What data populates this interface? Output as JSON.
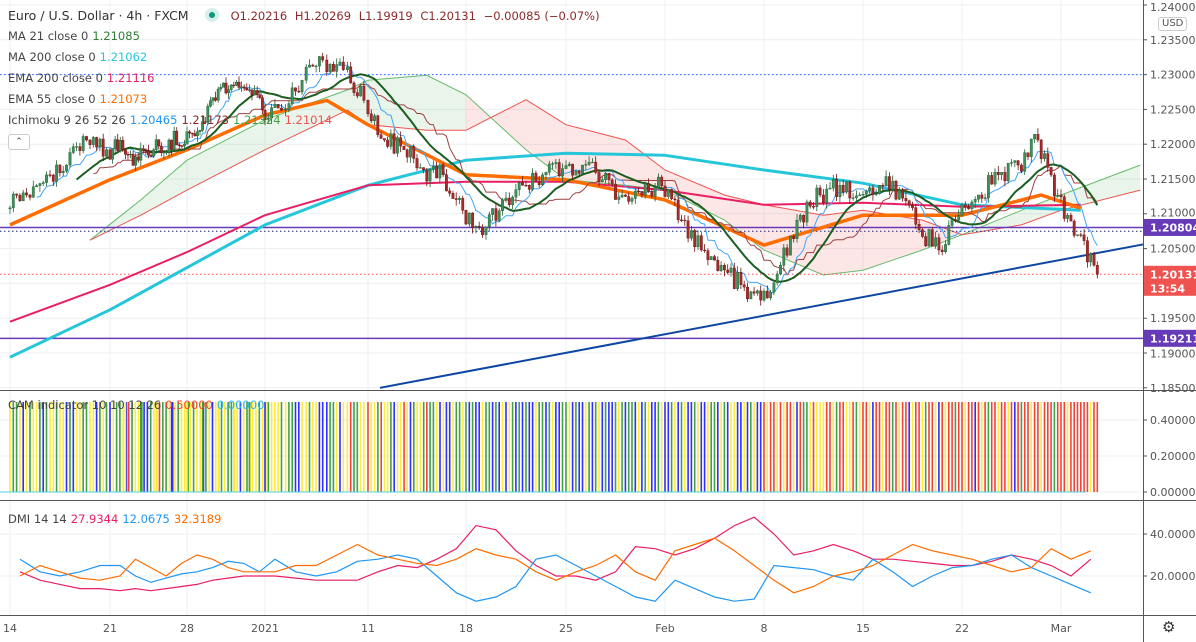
{
  "header": {
    "symbol": "Euro / U.S. Dollar · 4h · FXCM",
    "open": "O1.20216",
    "high": "H1.20269",
    "low": "L1.19919",
    "close": "C1.20131",
    "change": "−0.00085 (−0.07%)",
    "status_color": "#089981"
  },
  "legends": {
    "ma21": {
      "label": "MA 21 close 0",
      "value": "1.21085",
      "color": "#2e7d32"
    },
    "ma200": {
      "label": "MA 200 close 0",
      "value": "1.21062",
      "color": "#26c6da"
    },
    "ema200": {
      "label": "EMA 200 close 0",
      "value": "1.21116",
      "color": "#e91e63"
    },
    "ema55": {
      "label": "EMA 55 close 0",
      "value": "1.21073",
      "color": "#ff6d00"
    },
    "ichimoku": {
      "label": "Ichimoku 9 26 52 26",
      "v1": "1.20465",
      "v2": "1.21173",
      "v3": "1.21324",
      "v4": "1.21014"
    },
    "cam": {
      "label": "CAM indicator 10 10 12 26",
      "v1": "0.50000",
      "v2": "0.00000"
    },
    "dmi": {
      "label": "DMI 14 14",
      "v1": "27.9344",
      "v2": "12.0675",
      "v3": "32.3189"
    }
  },
  "price_axis": {
    "currency": "USD",
    "ticks": [
      "1.24000",
      "1.23500",
      "1.23000",
      "1.22500",
      "1.22000",
      "1.21500",
      "1.21000",
      "1.20500",
      "1.19500",
      "1.19000",
      "1.18500"
    ],
    "badges": [
      {
        "value": "1.20804",
        "color": "#673ab7"
      },
      {
        "value": "1.19211",
        "color": "#673ab7"
      },
      {
        "value": "1.20131",
        "countdown": "13:54",
        "color": "#ef5350"
      }
    ]
  },
  "cam_axis": {
    "ticks": [
      "0.40000",
      "0.20000",
      "0.00000"
    ]
  },
  "dmi_axis": {
    "ticks": [
      "40.0000",
      "20.0000"
    ]
  },
  "time_axis": {
    "labels": [
      "14",
      "21",
      "28",
      "2021",
      "11",
      "18",
      "25",
      "Feb",
      "8",
      "15",
      "22",
      "Mar"
    ]
  },
  "chart_data": {
    "type": "candlestick",
    "timeframe": "4h",
    "ylim": [
      1.185,
      1.24
    ],
    "days": [
      "2020-12-14",
      "2020-12-15",
      "2020-12-16",
      "2020-12-17",
      "2020-12-18",
      "2020-12-21",
      "2020-12-22",
      "2020-12-23",
      "2020-12-24",
      "2020-12-25",
      "2020-12-28",
      "2020-12-29",
      "2020-12-30",
      "2020-12-31",
      "2021-01-01",
      "2021-01-04",
      "2021-01-05",
      "2021-01-06",
      "2021-01-07",
      "2021-01-08",
      "2021-01-11",
      "2021-01-12",
      "2021-01-13",
      "2021-01-14",
      "2021-01-15",
      "2021-01-18",
      "2021-01-19",
      "2021-01-20",
      "2021-01-21",
      "2021-01-22",
      "2021-01-25",
      "2021-01-26",
      "2021-01-27",
      "2021-01-28",
      "2021-01-29",
      "2021-02-01",
      "2021-02-02",
      "2021-02-03",
      "2021-02-04",
      "2021-02-05",
      "2021-02-08",
      "2021-02-09",
      "2021-02-10",
      "2021-02-11",
      "2021-02-12",
      "2021-02-15",
      "2021-02-16",
      "2021-02-17",
      "2021-02-18",
      "2021-02-19",
      "2021-02-22",
      "2021-02-23",
      "2021-02-24",
      "2021-02-25",
      "2021-02-26",
      "2021-03-01",
      "2021-03-02"
    ],
    "daily_close": [
      1.2127,
      1.2156,
      1.217,
      1.2206,
      1.2192,
      1.2192,
      1.2177,
      1.2192,
      1.2206,
      1.22,
      1.222,
      1.2263,
      1.2285,
      1.2278,
      1.2249,
      1.2249,
      1.2292,
      1.2321,
      1.2307,
      1.2263,
      1.2206,
      1.2192,
      1.2163,
      1.2156,
      1.2105,
      1.207,
      1.212,
      1.2141,
      1.2156,
      1.2165,
      1.217,
      1.2149,
      1.2127,
      1.2127,
      1.214,
      1.2091,
      1.2048,
      1.2026,
      1.1998,
      1.1976,
      1.2026,
      1.2098,
      1.2127,
      1.2141,
      1.2127,
      1.2141,
      1.2134,
      1.2077,
      1.2048,
      1.2098,
      1.2127,
      1.2156,
      1.217,
      1.2206,
      1.2127,
      1.207,
      1.2013
    ],
    "ma200": [
      [
        "2020-12-14",
        1.1894
      ],
      [
        "2020-12-21",
        1.1962
      ],
      [
        "2021-01-04",
        1.2084
      ],
      [
        "2021-01-11",
        1.2141
      ],
      [
        "2021-01-18",
        1.2177
      ],
      [
        "2021-01-25",
        1.2187
      ],
      [
        "2021-02-01",
        1.2184
      ],
      [
        "2021-02-08",
        1.2163
      ],
      [
        "2021-02-15",
        1.2144
      ],
      [
        "2021-02-22",
        1.2113
      ],
      [
        "2021-03-02",
        1.2105
      ]
    ],
    "ema200": [
      [
        "2020-12-14",
        1.1945
      ],
      [
        "2020-12-21",
        1.1998
      ],
      [
        "2020-12-28",
        1.2045
      ],
      [
        "2021-01-04",
        1.2098
      ],
      [
        "2021-01-11",
        1.2141
      ],
      [
        "2021-01-18",
        1.2146
      ],
      [
        "2021-01-25",
        1.2146
      ],
      [
        "2021-02-01",
        1.2134
      ],
      [
        "2021-02-08",
        1.2113
      ],
      [
        "2021-02-15",
        1.2116
      ],
      [
        "2021-02-22",
        1.211
      ],
      [
        "2021-03-02",
        1.2113
      ]
    ],
    "ema55": [
      [
        "2020-12-14",
        1.2084
      ],
      [
        "2020-12-21",
        1.2149
      ],
      [
        "2020-12-28",
        1.2192
      ],
      [
        "2021-01-04",
        1.2242
      ],
      [
        "2021-01-07",
        1.2263
      ],
      [
        "2021-01-11",
        1.2228
      ],
      [
        "2021-01-18",
        1.2156
      ],
      [
        "2021-01-25",
        1.2149
      ],
      [
        "2021-02-01",
        1.212
      ],
      [
        "2021-02-08",
        1.2055
      ],
      [
        "2021-02-15",
        1.2098
      ],
      [
        "2021-02-22",
        1.2098
      ],
      [
        "2021-02-26",
        1.2127
      ],
      [
        "2021-03-02",
        1.2108
      ]
    ],
    "ichimoku_cloud": [
      [
        "2020-12-18",
        1.2062,
        1.2062
      ],
      [
        "2020-12-23",
        1.212,
        1.2098
      ],
      [
        "2020-12-28",
        1.2177,
        1.2134
      ],
      [
        "2021-01-04",
        1.2235,
        1.2192
      ],
      [
        "2021-01-08",
        1.2278,
        1.2249
      ],
      [
        "2021-01-11",
        1.2292,
        1.2228
      ],
      [
        "2021-01-14",
        1.2299,
        1.222
      ],
      [
        "2021-01-18",
        1.2271,
        1.222
      ],
      [
        "2021-01-21",
        1.2192,
        1.2264
      ],
      [
        "2021-01-25",
        1.2149,
        1.2228
      ],
      [
        "2021-01-28",
        1.2141,
        1.2206
      ],
      [
        "2021-02-01",
        1.2134,
        1.2163
      ],
      [
        "2021-02-04",
        1.2091,
        1.2127
      ],
      [
        "2021-02-08",
        1.2048,
        1.2113
      ],
      [
        "2021-02-11",
        1.2012,
        1.2098
      ],
      [
        "2021-02-15",
        1.2019,
        1.2105
      ],
      [
        "2021-02-18",
        1.2048,
        1.2091
      ],
      [
        "2021-02-22",
        1.207,
        1.207
      ],
      [
        "2021-02-25",
        1.2105,
        1.2084
      ],
      [
        "2021-03-01",
        1.2127,
        1.2105
      ],
      [
        "2021-03-05",
        1.217,
        1.2134
      ]
    ],
    "horizontal_lines": [
      {
        "price": 1.20804,
        "style": "solid",
        "color": "#673ab7"
      },
      {
        "price": 1.19211,
        "style": "solid",
        "color": "#673ab7"
      },
      {
        "price": 1.23,
        "style": "dotted",
        "color": "#2962ff"
      },
      {
        "price": 1.2075,
        "style": "dotted",
        "color": "#1a237e"
      },
      {
        "price": 1.20131,
        "style": "dotted",
        "color": "#ef5350"
      }
    ],
    "trendline": {
      "from": [
        "2021-01-11",
        1.185
      ],
      "to": [
        "2021-03-05",
        1.2056
      ],
      "color": "#0d47a1"
    },
    "cam": {
      "value": 0.5,
      "ylim": [
        0,
        0.5
      ],
      "colors": {
        "G": "#43a047",
        "Y": "#ffeb3b",
        "B": "#2f2fff",
        "R": "#f44336"
      },
      "daily_states": [
        "YGGYBY",
        "GYYGBG",
        "YYGYYB",
        "GBYYGG",
        "YYBGYG",
        "BYGGYB",
        "YRGYYG",
        "GBBGYY",
        "YRGGYB",
        "BYGYYG",
        "YYGYYB",
        "GGYBYY",
        "YGYGGY",
        "YYBYGY",
        "GYYGYY",
        "BGYYYG",
        "YGGBBY",
        "YGYYBB",
        "BGGYBY",
        "YRGGYY",
        "RYYGRY",
        "YGBYYR",
        "YBGYYG",
        "RGGYBY",
        "BBYGGY",
        "GBGBBY",
        "GGBGBY",
        "BYGBGB",
        "GBBYGG",
        "BGYBBG",
        "GYBGBB",
        "YGBGYB",
        "GBBGYG",
        "BGGBYB",
        "GYBBGY",
        "BBGYBG",
        "YBBGYB",
        "BYGGBY",
        "GBYYBB",
        "YBGYBB",
        "RYRRYR",
        "YRRYBR",
        "GGYRYY",
        "YRRYGR",
        "RYYRGY",
        "RRYBRR",
        "YRRGRY",
        "RRBYRR",
        "YGRRYB",
        "RYRRGR",
        "RYRRBR",
        "YRGRRY",
        "RRYRBR",
        "GRRYRR",
        "YRRRGR",
        "RRYRRR",
        "RRRYRR"
      ]
    },
    "dmi": {
      "ylim": [
        0,
        55
      ],
      "series": [
        {
          "color": "#e91e63",
          "values": [
            22,
            18,
            16,
            14,
            14,
            13,
            14,
            13,
            14,
            15,
            16,
            18,
            19,
            20,
            20,
            20,
            19,
            18,
            18,
            18,
            22,
            25,
            24,
            28,
            33,
            44,
            42,
            32,
            25,
            20,
            20,
            18,
            22,
            34,
            33,
            30,
            33,
            38,
            44,
            48,
            40,
            30,
            32,
            35,
            32,
            28,
            28,
            27,
            26,
            25,
            25,
            27,
            30,
            28,
            25,
            20,
            28
          ]
        },
        {
          "color": "#2196f3",
          "values": [
            28,
            22,
            20,
            22,
            25,
            25,
            20,
            17,
            19,
            21,
            22,
            24,
            27,
            26,
            22,
            28,
            22,
            20,
            22,
            27,
            28,
            30,
            28,
            20,
            12,
            8,
            10,
            15,
            28,
            30,
            25,
            20,
            15,
            10,
            8,
            18,
            14,
            10,
            8,
            9,
            25,
            24,
            23,
            20,
            18,
            28,
            22,
            15,
            20,
            24,
            25,
            28,
            30,
            24,
            20,
            16,
            12
          ]
        },
        {
          "color": "#ff6d00",
          "values": [
            20,
            25,
            22,
            19,
            18,
            20,
            28,
            24,
            20,
            26,
            30,
            28,
            24,
            22,
            22,
            22,
            25,
            25,
            30,
            35,
            30,
            28,
            26,
            25,
            28,
            33,
            30,
            28,
            22,
            18,
            22,
            25,
            30,
            22,
            18,
            32,
            35,
            38,
            32,
            25,
            18,
            12,
            15,
            20,
            22,
            25,
            30,
            35,
            32,
            30,
            28,
            25,
            22,
            24,
            33,
            28,
            32
          ]
        }
      ]
    }
  }
}
